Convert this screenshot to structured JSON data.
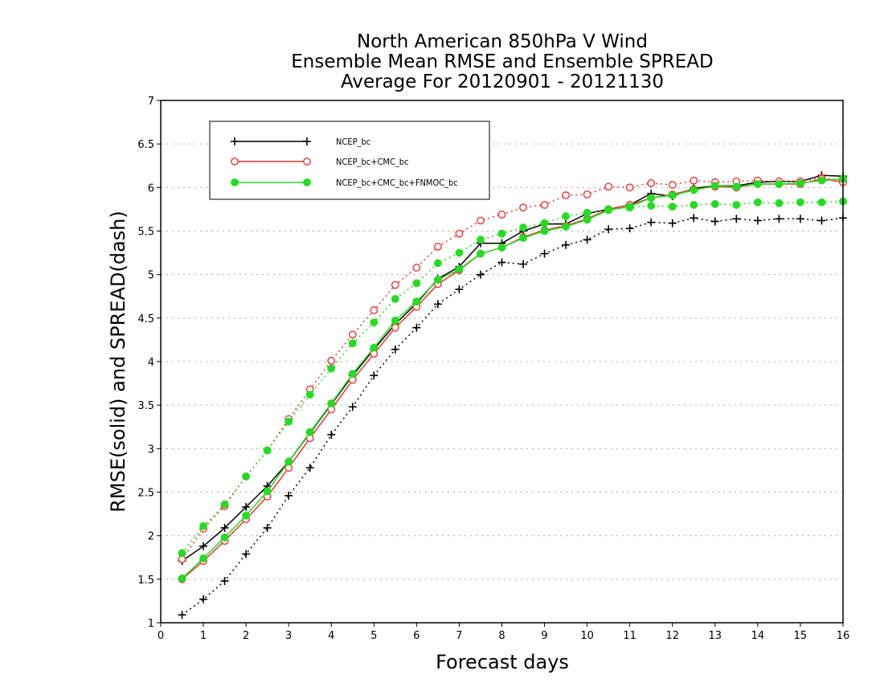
{
  "chart_data": {
    "type": "line",
    "title": [
      "North American 850hPa V Wind",
      "Ensemble Mean RMSE and Ensemble SPREAD",
      "Average For 20120901 - 20121130"
    ],
    "xlabel": "Forecast days",
    "ylabel": "RMSE(solid) and SPREAD(dash)",
    "xlim": [
      0,
      16
    ],
    "ylim": [
      1,
      7
    ],
    "xticks": [
      0,
      1,
      2,
      3,
      4,
      5,
      6,
      7,
      8,
      9,
      10,
      11,
      12,
      13,
      14,
      15,
      16
    ],
    "yticks": [
      1,
      1.5,
      2,
      2.5,
      3,
      3.5,
      4,
      4.5,
      5,
      5.5,
      6,
      6.5,
      7
    ],
    "grid": true,
    "legend_placement": "top-left",
    "x": [
      0.5,
      1,
      1.5,
      2,
      2.5,
      3,
      3.5,
      4,
      4.5,
      5,
      5.5,
      6,
      6.5,
      7,
      7.5,
      8,
      8.5,
      9,
      9.5,
      10,
      10.5,
      11,
      11.5,
      12,
      12.5,
      13,
      13.5,
      14,
      14.5,
      15,
      15.5,
      16
    ],
    "series": [
      {
        "name": "NCEP_bc",
        "color": "#000000",
        "marker": "plus",
        "rmse": [
          1.71,
          1.88,
          2.09,
          2.33,
          2.57,
          2.85,
          3.18,
          3.51,
          3.84,
          4.14,
          4.43,
          4.67,
          4.95,
          5.09,
          5.36,
          5.36,
          5.5,
          5.58,
          5.58,
          5.7,
          5.75,
          5.8,
          5.93,
          5.9,
          5.99,
          6.02,
          6.02,
          6.06,
          6.07,
          6.07,
          6.14,
          6.13
        ],
        "spread": [
          1.09,
          1.27,
          1.48,
          1.79,
          2.09,
          2.46,
          2.78,
          3.16,
          3.48,
          3.84,
          4.14,
          4.39,
          4.66,
          4.83,
          5.0,
          5.14,
          5.12,
          5.24,
          5.34,
          5.4,
          5.52,
          5.53,
          5.6,
          5.59,
          5.65,
          5.61,
          5.64,
          5.62,
          5.64,
          5.64,
          5.62,
          5.65
        ]
      },
      {
        "name": "NCEP_bc+CMC_bc",
        "color": "#ee3333",
        "marker": "open-circle",
        "rmse": [
          1.5,
          1.71,
          1.94,
          2.19,
          2.45,
          2.78,
          3.12,
          3.45,
          3.79,
          4.09,
          4.39,
          4.63,
          4.89,
          5.05,
          5.24,
          5.31,
          5.43,
          5.51,
          5.56,
          5.64,
          5.75,
          5.8,
          5.88,
          5.92,
          5.98,
          6.01,
          6.0,
          6.04,
          6.04,
          6.04,
          6.1,
          6.06
        ],
        "spread": [
          1.73,
          2.08,
          2.34,
          2.68,
          2.98,
          3.34,
          3.68,
          4.01,
          4.31,
          4.59,
          4.88,
          5.08,
          5.32,
          5.47,
          5.62,
          5.69,
          5.77,
          5.8,
          5.91,
          5.92,
          6.01,
          6.0,
          6.05,
          6.03,
          6.08,
          6.06,
          6.07,
          6.08,
          6.07,
          6.07,
          6.11,
          6.08
        ]
      },
      {
        "name": "NCEP_bc+CMC_bc+FNMOC_bc",
        "color": "#22dd22",
        "marker": "filled-circle",
        "rmse": [
          1.51,
          1.74,
          1.98,
          2.23,
          2.51,
          2.85,
          3.19,
          3.52,
          3.86,
          4.16,
          4.47,
          4.69,
          4.94,
          5.06,
          5.24,
          5.31,
          5.42,
          5.5,
          5.55,
          5.63,
          5.74,
          5.78,
          5.88,
          5.91,
          5.97,
          6.02,
          6.01,
          6.04,
          6.04,
          6.05,
          6.08,
          6.1
        ],
        "spread": [
          1.8,
          2.11,
          2.36,
          2.68,
          2.98,
          3.31,
          3.62,
          3.92,
          4.21,
          4.45,
          4.72,
          4.9,
          5.13,
          5.25,
          5.4,
          5.47,
          5.54,
          5.59,
          5.67,
          5.71,
          5.75,
          5.77,
          5.79,
          5.78,
          5.8,
          5.81,
          5.8,
          5.83,
          5.82,
          5.83,
          5.83,
          5.84
        ]
      }
    ]
  }
}
